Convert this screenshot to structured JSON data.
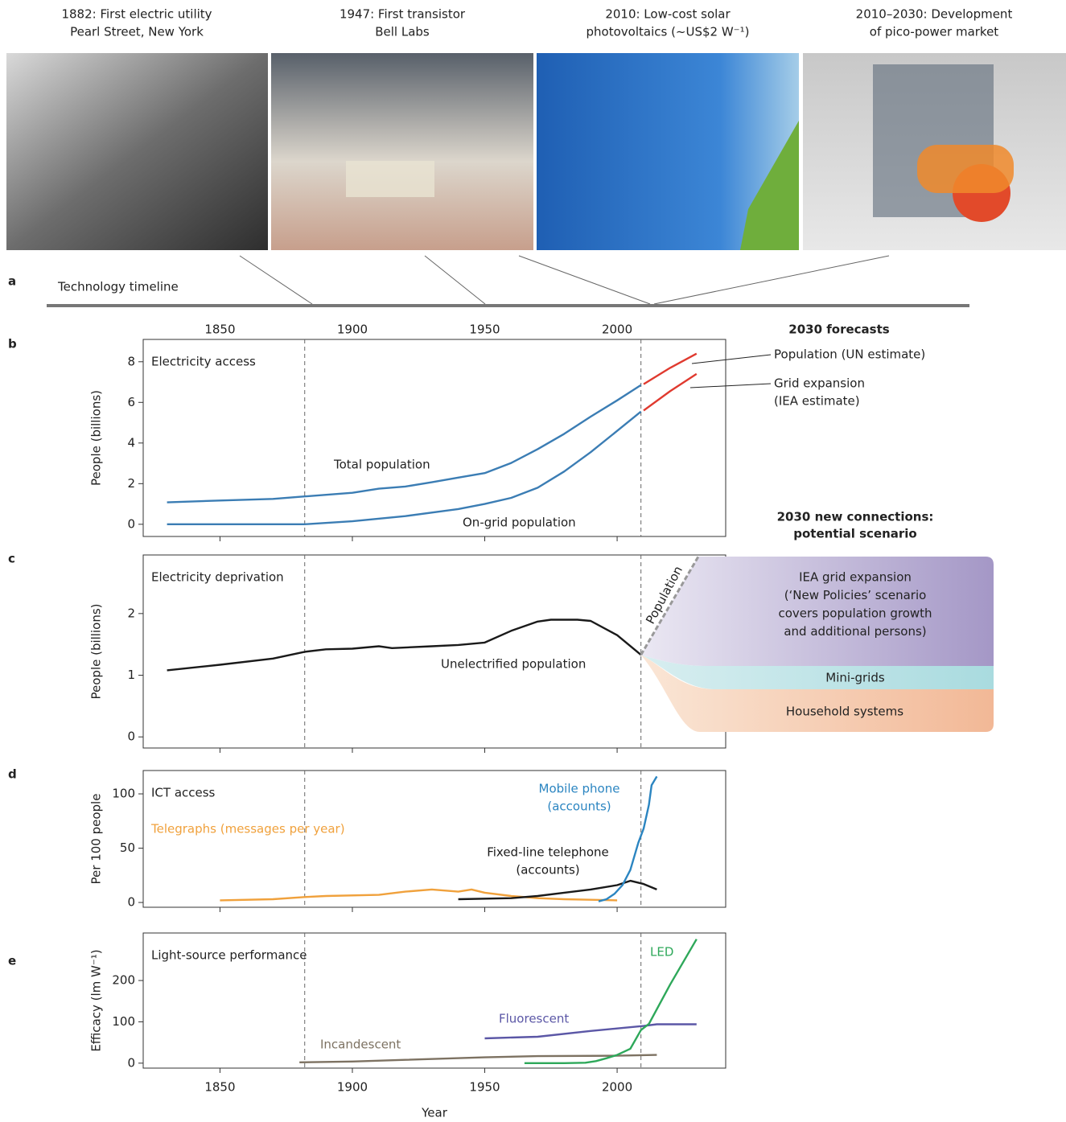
{
  "panel_labels": [
    "a",
    "b",
    "c",
    "d",
    "e"
  ],
  "photos": [
    {
      "caption": [
        "1882: First electric utility",
        "Pearl Street, New York"
      ]
    },
    {
      "caption": [
        "1947: First transistor",
        "Bell Labs"
      ]
    },
    {
      "caption": [
        "2010: Low-cost solar",
        "photovoltaics (~US$2 W⁻¹)"
      ]
    },
    {
      "caption": [
        "2010–2030: Development",
        "of pico-power market"
      ]
    }
  ],
  "timeline": {
    "label": "Technology timeline",
    "xlim": [
      1821,
      2041
    ],
    "xticks": [
      1850,
      1900,
      1950,
      2000
    ]
  },
  "chart_data": [
    {
      "type": "line",
      "title": "Electricity access",
      "y_label": "People (billions)",
      "legend_title": "2030 forecasts",
      "xlim": [
        1821,
        2041
      ],
      "xticks": [
        1850,
        1900,
        1950,
        2000
      ],
      "ylim": [
        -0.6,
        9.1
      ],
      "yticks": [
        0,
        2,
        4,
        6,
        8
      ],
      "vlines": [
        1882,
        2009
      ],
      "series": [
        {
          "name": "Total population",
          "color": "#3b7db4",
          "x": [
            1830,
            1850,
            1870,
            1882,
            1900,
            1910,
            1920,
            1930,
            1940,
            1950,
            1960,
            1970,
            1980,
            1990,
            2000,
            2009
          ],
          "values": [
            1.08,
            1.17,
            1.25,
            1.37,
            1.55,
            1.75,
            1.86,
            2.07,
            2.3,
            2.52,
            3.02,
            3.7,
            4.45,
            5.3,
            6.1,
            6.85
          ]
        },
        {
          "name": "On-grid population",
          "color": "#3b7db4",
          "x": [
            1830,
            1850,
            1870,
            1882,
            1900,
            1920,
            1940,
            1950,
            1960,
            1970,
            1980,
            1990,
            2000,
            2009
          ],
          "values": [
            0,
            0,
            0,
            0,
            0.15,
            0.4,
            0.75,
            1.0,
            1.3,
            1.8,
            2.6,
            3.55,
            4.6,
            5.55
          ]
        },
        {
          "name": "Population (UN estimate)",
          "color": "#e03a2f",
          "x": [
            2010,
            2020,
            2030
          ],
          "values": [
            6.9,
            7.7,
            8.4
          ]
        },
        {
          "name": [
            "Grid expansion",
            "(IEA estimate)"
          ],
          "color": "#e03a2f",
          "x": [
            2010,
            2020,
            2030
          ],
          "values": [
            5.6,
            6.55,
            7.4
          ]
        }
      ]
    },
    {
      "type": "line",
      "title": "Electricity deprivation",
      "y_label": "People (billions)",
      "xlim": [
        1821,
        2041
      ],
      "xticks": [
        1850,
        1900,
        1950,
        2000
      ],
      "ylim": [
        -0.18,
        2.95
      ],
      "yticks": [
        0,
        1,
        2
      ],
      "vlines": [
        1882,
        2009
      ],
      "series": [
        {
          "name": "Unelectrified population",
          "color": "#1a1a1a",
          "x": [
            1830,
            1850,
            1870,
            1882,
            1890,
            1900,
            1905,
            1910,
            1915,
            1930,
            1940,
            1950,
            1960,
            1970,
            1975,
            1985,
            1990,
            2000,
            2009
          ],
          "values": [
            1.08,
            1.17,
            1.27,
            1.38,
            1.42,
            1.43,
            1.45,
            1.47,
            1.44,
            1.47,
            1.49,
            1.53,
            1.72,
            1.87,
            1.9,
            1.9,
            1.88,
            1.65,
            1.33
          ]
        }
      ],
      "scenario": {
        "title": [
          "2030 new connections:",
          "potential scenario"
        ],
        "population_label": "Population",
        "segments": [
          {
            "name": [
              "IEA grid expansion",
              "(‘New Policies’ scenario",
              "covers population growth",
              "and additional persons)"
            ],
            "color": "#a497c6"
          },
          {
            "name": "Mini-grids",
            "color": "#a9dbdf"
          },
          {
            "name": "Household systems",
            "color": "#f2b896"
          }
        ]
      }
    },
    {
      "type": "line",
      "title": "ICT access",
      "y_label": "Per 100 people",
      "label_colors": true,
      "xlim": [
        1821,
        2041
      ],
      "xticks": [
        1850,
        1900,
        1950,
        2000
      ],
      "ylim": [
        -4.4,
        121.5
      ],
      "yticks": [
        0,
        50,
        100
      ],
      "vlines": [
        1882,
        2009
      ],
      "series": [
        {
          "name": "Telegraphs (messages per year)",
          "color": "#f0a13c",
          "x": [
            1850,
            1870,
            1882,
            1890,
            1910,
            1920,
            1930,
            1940,
            1945,
            1950,
            1960,
            1970,
            1980,
            1990,
            2000
          ],
          "values": [
            2,
            3,
            5,
            6,
            7,
            10,
            12,
            10,
            12,
            9,
            6,
            4,
            3,
            2.5,
            2
          ]
        },
        {
          "name": [
            "Fixed-line telephone",
            "(accounts)"
          ],
          "color": "#1a1a1a",
          "x": [
            1940,
            1960,
            1970,
            1980,
            1990,
            2000,
            2005,
            2010,
            2015
          ],
          "values": [
            3,
            4,
            6,
            9,
            12,
            16,
            20,
            17,
            12
          ]
        },
        {
          "name": [
            "Mobile phone",
            "(accounts)"
          ],
          "color": "#2b85c1",
          "x": [
            1993,
            1996,
            1999,
            2002,
            2005,
            2008,
            2010,
            2012,
            2013,
            2015
          ],
          "values": [
            1,
            3,
            8,
            16,
            30,
            55,
            68,
            90,
            108,
            116
          ]
        }
      ]
    },
    {
      "type": "line",
      "title": "Light-source performance",
      "y_label": "Efficacy (lm W⁻¹)",
      "x_label": "Year",
      "label_colors": true,
      "xlim": [
        1821,
        2041
      ],
      "xticks": [
        1850,
        1900,
        1950,
        2000
      ],
      "ylim": [
        -12,
        315
      ],
      "yticks": [
        0,
        100,
        200
      ],
      "vlines": [
        1882,
        2009
      ],
      "series": [
        {
          "name": "Incandescent",
          "color": "#7d7262",
          "x": [
            1880,
            1900,
            1920,
            1950,
            1970,
            2000,
            2015
          ],
          "values": [
            2,
            4,
            8,
            14,
            17,
            18,
            20
          ]
        },
        {
          "name": "Fluorescent",
          "color": "#5b57a6",
          "x": [
            1950,
            1970,
            1990,
            2000,
            2010,
            2015,
            2030
          ],
          "values": [
            60,
            64,
            78,
            84,
            90,
            94,
            94
          ]
        },
        {
          "name": "LED",
          "color": "#2ea85a",
          "x": [
            1965,
            1980,
            1988,
            1992,
            1996,
            2000,
            2005,
            2009,
            2012,
            2020,
            2030
          ],
          "values": [
            0,
            0,
            1,
            5,
            12,
            20,
            35,
            80,
            95,
            190,
            300
          ]
        }
      ]
    }
  ]
}
